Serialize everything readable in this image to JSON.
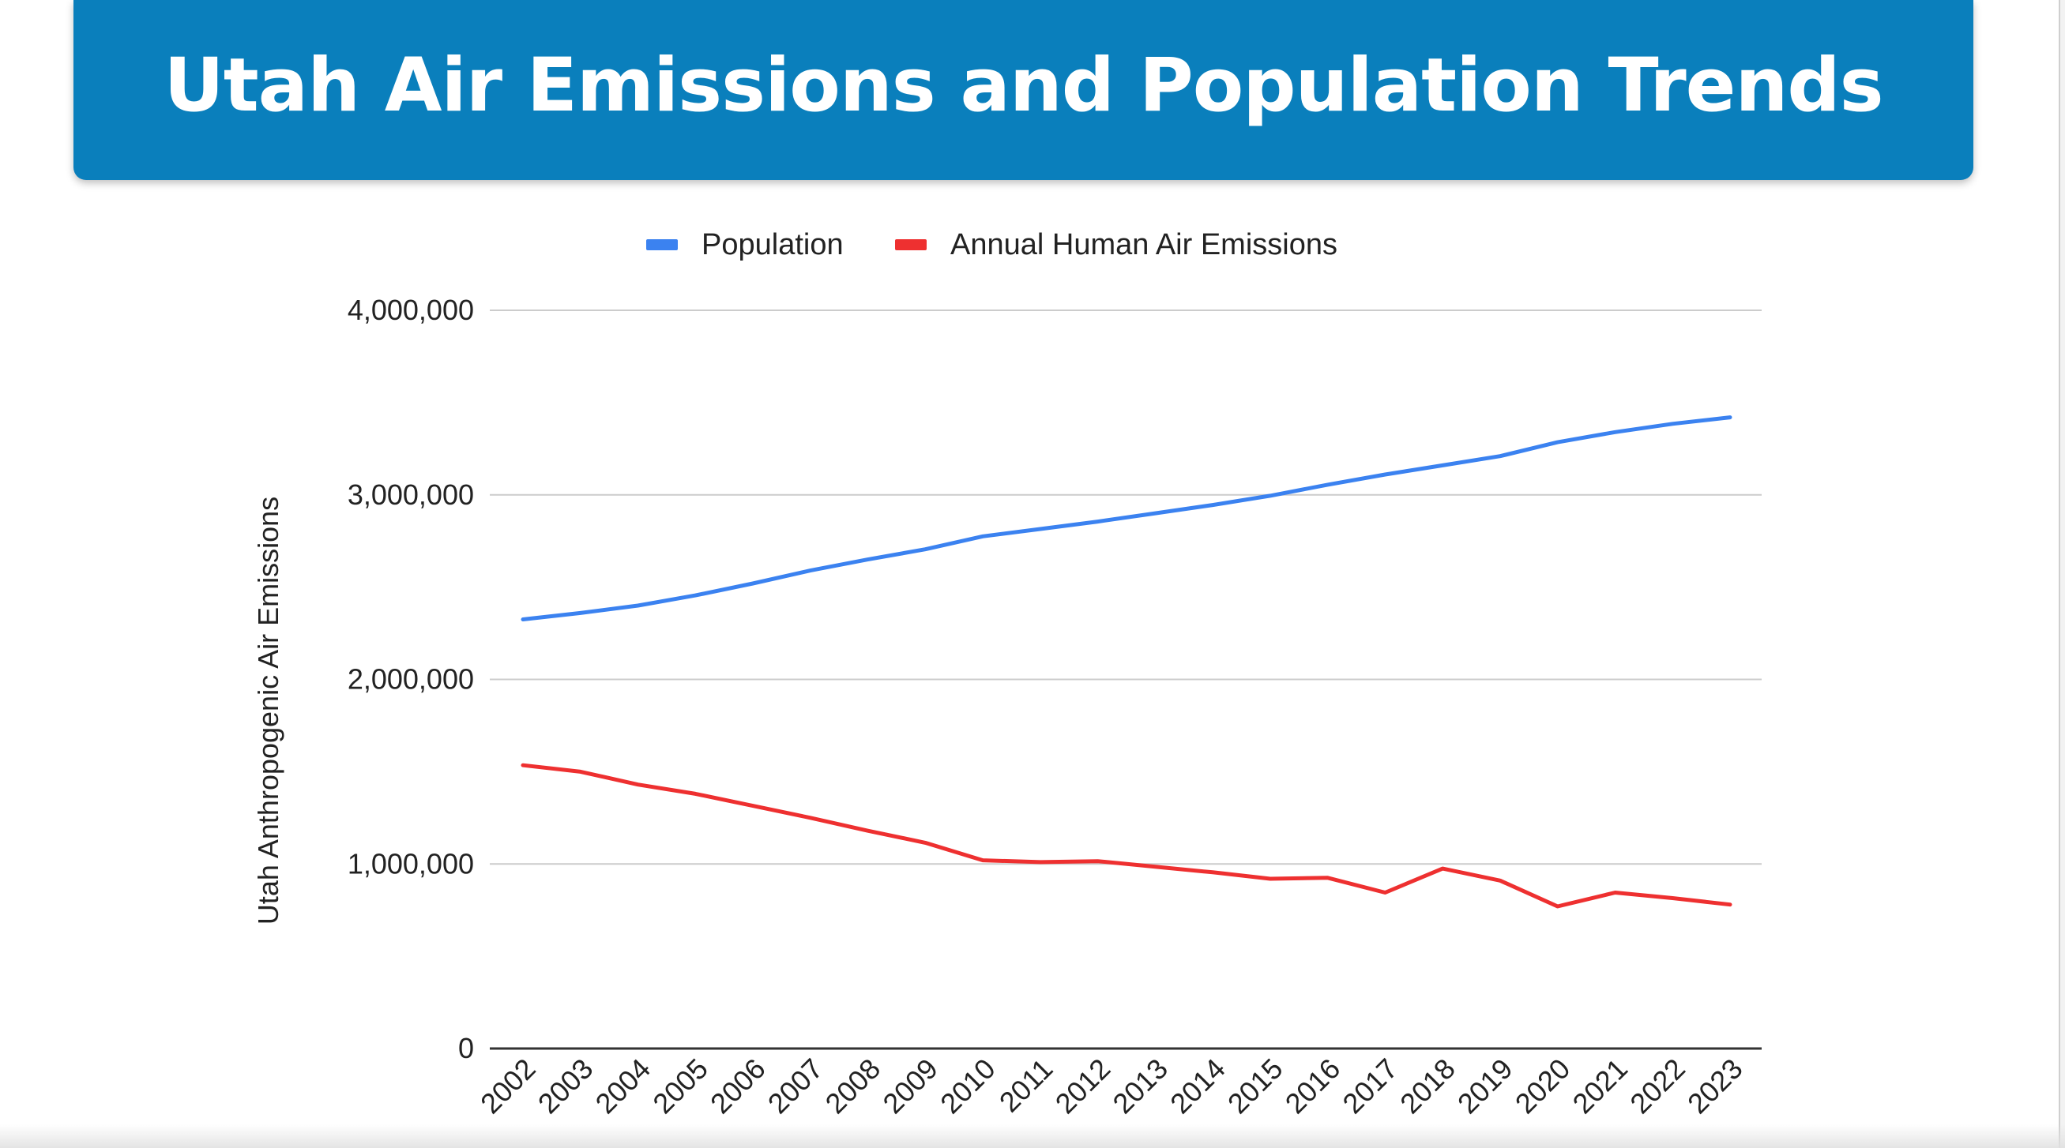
{
  "page": {
    "title": "Utah Air Emissions and Population Trends"
  },
  "colors": {
    "banner": "#0a7fbc",
    "population": "#3b82f0",
    "emissions": "#ee3030",
    "grid": "#cccccc"
  },
  "chart_data": {
    "type": "line",
    "title": "",
    "xlabel": "",
    "ylabel": "Utah Anthropogenic Air Emissions",
    "ylim": [
      0,
      4000000
    ],
    "yticks": [
      0,
      1000000,
      2000000,
      3000000,
      4000000
    ],
    "ytick_labels": [
      "0",
      "1,000,000",
      "2,000,000",
      "3,000,000",
      "4,000,000"
    ],
    "grid": true,
    "legend_position": "top",
    "categories": [
      "2002",
      "2003",
      "2004",
      "2005",
      "2006",
      "2007",
      "2008",
      "2009",
      "2010",
      "2011",
      "2012",
      "2013",
      "2014",
      "2015",
      "2016",
      "2017",
      "2018",
      "2019",
      "2020",
      "2021",
      "2022",
      "2023"
    ],
    "series": [
      {
        "name": "Population",
        "color": "#3b82f0",
        "values": [
          2325000,
          2360000,
          2400000,
          2455000,
          2520000,
          2590000,
          2650000,
          2705000,
          2775000,
          2815000,
          2855000,
          2900000,
          2945000,
          2995000,
          3055000,
          3110000,
          3160000,
          3210000,
          3285000,
          3340000,
          3385000,
          3420000
        ]
      },
      {
        "name": "Annual Human Air Emissions",
        "color": "#ee3030",
        "values": [
          1535000,
          1500000,
          1430000,
          1380000,
          1315000,
          1250000,
          1180000,
          1115000,
          1020000,
          1010000,
          1015000,
          985000,
          955000,
          920000,
          925000,
          845000,
          975000,
          910000,
          770000,
          845000,
          815000,
          780000
        ]
      }
    ]
  }
}
